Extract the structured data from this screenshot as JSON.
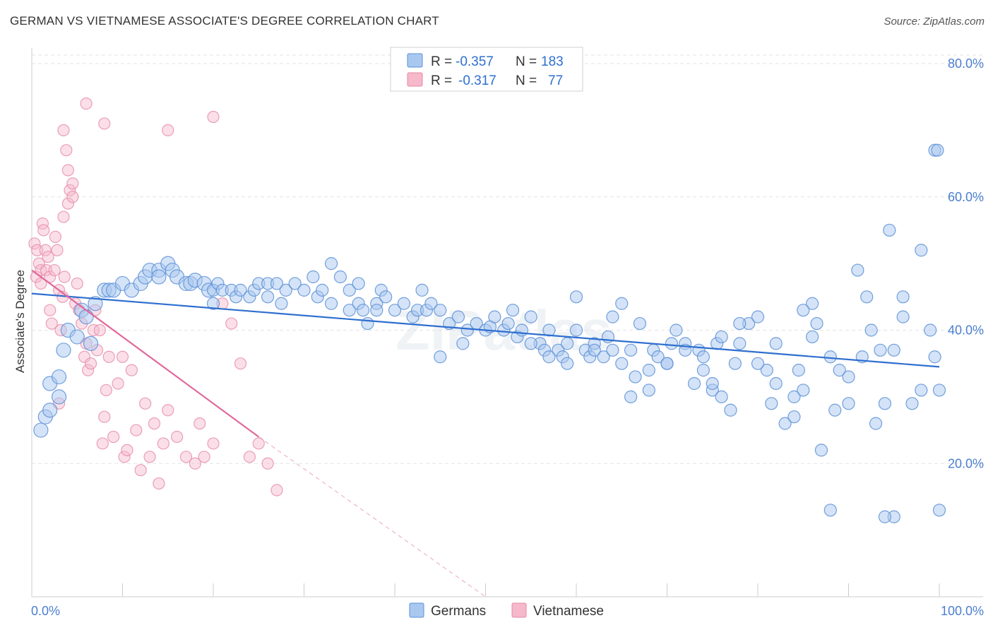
{
  "title": "GERMAN VS VIETNAMESE ASSOCIATE'S DEGREE CORRELATION CHART",
  "source": "Source: ZipAtlas.com",
  "watermark": "ZIPatlas",
  "legend": {
    "rows": [
      {
        "r_label": "R =",
        "r_value": "-0.357",
        "n_label": "N =",
        "n_value": "183"
      },
      {
        "r_label": "R =",
        "r_value": "-0.317",
        "n_label": "N =",
        "n_value": "77"
      }
    ]
  },
  "bottom_legend": [
    "Germans",
    "Vietnamese"
  ],
  "colors": {
    "germans_fill": "#a9c8f0",
    "germans_stroke": "#5b8fd6",
    "germans_line": "#2f6fcf",
    "vietnamese_fill": "#f6b8cb",
    "vietnamese_stroke": "#e58aa6",
    "vietnamese_line": "#e0689a",
    "axis_text": "#4a7fd0"
  },
  "chart_data": {
    "type": "scatter",
    "ylabel": "Associate's Degree",
    "xlim": [
      0,
      100
    ],
    "ylim": [
      0,
      80
    ],
    "x_ticks": [
      "0.0%",
      "100.0%"
    ],
    "y_ticks": [
      "20.0%",
      "40.0%",
      "60.0%",
      "80.0%"
    ],
    "y_tick_values": [
      20,
      40,
      60,
      80
    ],
    "grid": true,
    "series": [
      {
        "name": "Germans",
        "trend": {
          "x": [
            0,
            100
          ],
          "y": [
            45.5,
            34.5
          ],
          "dashed_to": null
        },
        "points": [
          [
            1,
            25
          ],
          [
            1.5,
            27
          ],
          [
            2,
            28
          ],
          [
            2,
            32
          ],
          [
            3,
            33
          ],
          [
            3,
            30
          ],
          [
            3.5,
            37
          ],
          [
            4,
            40
          ],
          [
            5,
            39
          ],
          [
            5.5,
            43
          ],
          [
            6,
            42
          ],
          [
            6.5,
            38
          ],
          [
            7,
            44
          ],
          [
            8,
            46
          ],
          [
            8.5,
            46
          ],
          [
            9,
            46
          ],
          [
            10,
            47
          ],
          [
            11,
            46
          ],
          [
            12,
            47
          ],
          [
            12.5,
            48
          ],
          [
            13,
            49
          ],
          [
            14,
            49
          ],
          [
            14,
            48
          ],
          [
            15,
            50
          ],
          [
            15.5,
            49
          ],
          [
            16,
            48
          ],
          [
            17,
            47
          ],
          [
            17.5,
            47
          ],
          [
            18,
            47.5
          ],
          [
            19,
            47
          ],
          [
            19.5,
            46
          ],
          [
            20,
            46
          ],
          [
            20.5,
            47
          ],
          [
            21,
            46
          ],
          [
            22,
            46
          ],
          [
            22.5,
            45
          ],
          [
            23,
            46
          ],
          [
            24,
            45
          ],
          [
            24.5,
            46
          ],
          [
            25,
            47
          ],
          [
            26,
            47
          ],
          [
            27,
            47
          ],
          [
            27.5,
            44
          ],
          [
            28,
            46
          ],
          [
            29,
            47
          ],
          [
            30,
            46
          ],
          [
            31,
            48
          ],
          [
            31.5,
            45
          ],
          [
            32,
            46
          ],
          [
            33,
            44
          ],
          [
            34,
            48
          ],
          [
            35,
            46
          ],
          [
            36,
            44
          ],
          [
            36.5,
            43
          ],
          [
            37,
            41
          ],
          [
            38,
            44
          ],
          [
            38.5,
            46
          ],
          [
            39,
            45
          ],
          [
            40,
            43
          ],
          [
            41,
            44
          ],
          [
            42,
            42
          ],
          [
            42.5,
            43
          ],
          [
            43,
            46
          ],
          [
            43.5,
            43
          ],
          [
            44,
            44
          ],
          [
            45,
            43
          ],
          [
            46,
            41
          ],
          [
            47,
            42
          ],
          [
            47.5,
            38
          ],
          [
            48,
            40
          ],
          [
            49,
            41
          ],
          [
            50,
            40
          ],
          [
            50.5,
            40.5
          ],
          [
            51,
            42
          ],
          [
            52,
            40
          ],
          [
            52.5,
            41
          ],
          [
            53,
            43
          ],
          [
            53.5,
            39
          ],
          [
            54,
            40
          ],
          [
            55,
            42
          ],
          [
            56,
            38
          ],
          [
            56.5,
            37
          ],
          [
            57,
            40
          ],
          [
            58,
            37
          ],
          [
            58.5,
            36
          ],
          [
            59,
            38
          ],
          [
            60,
            40
          ],
          [
            61,
            37
          ],
          [
            61.5,
            36
          ],
          [
            62,
            38
          ],
          [
            63,
            36
          ],
          [
            63.5,
            39
          ],
          [
            64,
            37
          ],
          [
            65,
            35
          ],
          [
            66,
            37
          ],
          [
            66.5,
            33
          ],
          [
            67,
            41
          ],
          [
            68,
            34
          ],
          [
            68.5,
            37
          ],
          [
            69,
            36
          ],
          [
            70,
            35
          ],
          [
            70.5,
            38
          ],
          [
            71,
            40
          ],
          [
            72,
            38
          ],
          [
            73,
            32
          ],
          [
            73.5,
            37
          ],
          [
            74,
            34
          ],
          [
            75,
            31
          ],
          [
            75.5,
            38
          ],
          [
            76,
            39
          ],
          [
            77,
            28
          ],
          [
            77.5,
            35
          ],
          [
            78,
            38
          ],
          [
            79,
            41
          ],
          [
            80,
            42
          ],
          [
            81,
            34
          ],
          [
            81.5,
            29
          ],
          [
            82,
            38
          ],
          [
            83,
            26
          ],
          [
            84,
            30
          ],
          [
            84.5,
            34
          ],
          [
            85,
            31
          ],
          [
            86,
            44
          ],
          [
            86.5,
            41
          ],
          [
            87,
            22
          ],
          [
            88,
            13
          ],
          [
            88.5,
            28
          ],
          [
            89,
            34
          ],
          [
            90,
            29
          ],
          [
            91,
            49
          ],
          [
            91.5,
            36
          ],
          [
            92,
            45
          ],
          [
            93,
            26
          ],
          [
            93.5,
            37
          ],
          [
            94,
            29
          ],
          [
            94.5,
            55
          ],
          [
            95,
            12
          ],
          [
            96,
            45
          ],
          [
            97,
            29
          ],
          [
            98,
            52
          ],
          [
            99,
            40
          ],
          [
            99.5,
            36
          ],
          [
            100,
            31
          ],
          [
            100,
            13
          ],
          [
            33,
            50
          ],
          [
            26,
            45
          ],
          [
            20,
            44
          ],
          [
            35,
            43
          ],
          [
            45,
            36
          ],
          [
            55,
            38
          ],
          [
            60,
            45
          ],
          [
            65,
            44
          ],
          [
            70,
            35
          ],
          [
            75,
            32
          ],
          [
            80,
            35
          ],
          [
            85,
            43
          ],
          [
            90,
            33
          ],
          [
            95,
            37
          ],
          [
            98,
            31
          ],
          [
            99.5,
            67
          ],
          [
            99.8,
            67
          ],
          [
            96,
            42
          ],
          [
            94,
            12
          ],
          [
            92.5,
            40
          ],
          [
            76,
            30
          ],
          [
            78,
            41
          ],
          [
            82,
            32
          ],
          [
            84,
            27
          ],
          [
            86,
            39
          ],
          [
            88,
            36
          ],
          [
            57,
            36
          ],
          [
            59,
            35
          ],
          [
            62,
            37
          ],
          [
            64,
            42
          ],
          [
            66,
            30
          ],
          [
            68,
            31
          ],
          [
            72,
            37
          ],
          [
            74,
            36
          ],
          [
            36,
            47
          ],
          [
            38,
            43
          ]
        ]
      },
      {
        "name": "Vietnamese",
        "trend": {
          "x": [
            0,
            25
          ],
          "y": [
            49,
            24
          ],
          "dashed_to": [
            50,
            0
          ]
        },
        "points": [
          [
            0.3,
            53
          ],
          [
            0.5,
            48
          ],
          [
            0.6,
            52
          ],
          [
            0.8,
            50
          ],
          [
            1,
            49
          ],
          [
            1,
            47
          ],
          [
            1.2,
            56
          ],
          [
            1.3,
            55
          ],
          [
            1.5,
            52
          ],
          [
            1.6,
            49
          ],
          [
            1.8,
            51
          ],
          [
            2,
            43
          ],
          [
            2,
            48
          ],
          [
            2.2,
            41
          ],
          [
            2.5,
            49
          ],
          [
            2.6,
            54
          ],
          [
            2.8,
            52
          ],
          [
            3,
            46
          ],
          [
            3,
            29
          ],
          [
            3.2,
            40
          ],
          [
            3.4,
            45
          ],
          [
            3.5,
            57
          ],
          [
            3.6,
            48
          ],
          [
            3.8,
            67
          ],
          [
            4,
            59
          ],
          [
            4,
            64
          ],
          [
            4.2,
            61
          ],
          [
            4.5,
            60
          ],
          [
            4.8,
            44
          ],
          [
            5,
            47
          ],
          [
            5.2,
            43
          ],
          [
            5.5,
            41
          ],
          [
            5.8,
            36
          ],
          [
            6,
            38
          ],
          [
            6.2,
            34
          ],
          [
            6.5,
            35
          ],
          [
            6.8,
            40
          ],
          [
            7,
            43
          ],
          [
            7.2,
            37
          ],
          [
            7.5,
            40
          ],
          [
            7.8,
            23
          ],
          [
            8,
            27
          ],
          [
            8.2,
            31
          ],
          [
            8.5,
            36
          ],
          [
            9,
            24
          ],
          [
            9.5,
            32
          ],
          [
            10,
            36
          ],
          [
            10.2,
            21
          ],
          [
            10.5,
            22
          ],
          [
            11,
            34
          ],
          [
            11.5,
            25
          ],
          [
            12,
            19
          ],
          [
            12.5,
            29
          ],
          [
            13,
            21
          ],
          [
            13.5,
            26
          ],
          [
            14,
            17
          ],
          [
            14.5,
            23
          ],
          [
            15,
            28
          ],
          [
            16,
            24
          ],
          [
            17,
            21
          ],
          [
            18,
            20
          ],
          [
            18.5,
            26
          ],
          [
            19,
            21
          ],
          [
            20,
            23
          ],
          [
            21,
            44
          ],
          [
            22,
            41
          ],
          [
            23,
            35
          ],
          [
            24,
            21
          ],
          [
            25,
            23
          ],
          [
            26,
            20
          ],
          [
            27,
            16
          ],
          [
            6,
            74
          ],
          [
            8,
            71
          ],
          [
            3.5,
            70
          ],
          [
            15,
            70
          ],
          [
            20,
            72
          ],
          [
            4.5,
            62
          ]
        ]
      }
    ]
  }
}
